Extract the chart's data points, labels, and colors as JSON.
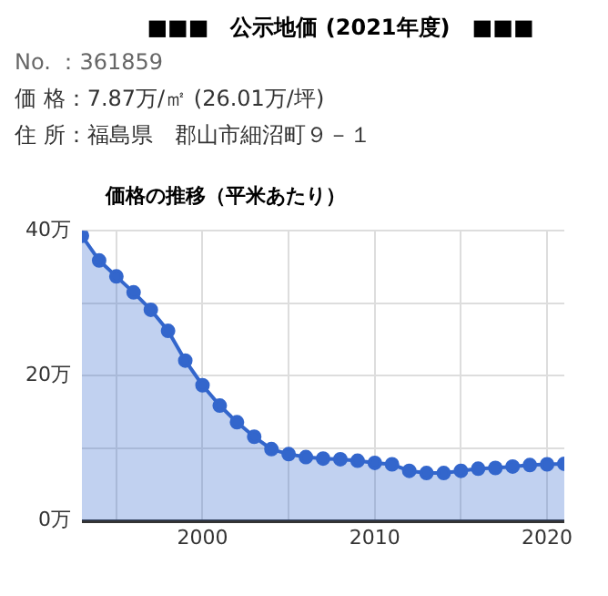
{
  "chart_data": {
    "type": "area",
    "title": "■■■　公示地価 (2021年度)　■■■",
    "subtitle": "価格の推移（平米あたり）",
    "annotations": [
      "No. ：361859",
      "価 格：7.87万/㎡ (26.01万/坪)",
      "住 所：福島県　郡山市細沼町９－１"
    ],
    "x": [
      1993,
      1994,
      1995,
      1996,
      1997,
      1998,
      1999,
      2000,
      2001,
      2002,
      2003,
      2004,
      2005,
      2006,
      2007,
      2008,
      2009,
      2010,
      2011,
      2012,
      2013,
      2014,
      2015,
      2016,
      2017,
      2018,
      2019,
      2020,
      2021
    ],
    "series": [
      {
        "color": "#3366cc",
        "values": [
          39.3,
          35.9,
          33.7,
          31.5,
          29.1,
          26.2,
          22.1,
          18.7,
          15.9,
          13.6,
          11.6,
          9.9,
          9.2,
          8.8,
          8.6,
          8.5,
          8.3,
          8.0,
          7.8,
          6.9,
          6.6,
          6.6,
          6.9,
          7.2,
          7.3,
          7.5,
          7.7,
          7.8,
          7.87
        ]
      }
    ],
    "xlim": [
      1993,
      2021
    ],
    "xticks": [
      {
        "value": 1995,
        "label": null
      },
      2000,
      {
        "value": 2005,
        "label": null
      },
      2010,
      {
        "value": 2015,
        "label": null
      },
      2020
    ],
    "ylim": [
      0,
      40
    ],
    "yticks": [
      {
        "value": 0,
        "label": "0万"
      },
      {
        "value": 10,
        "label": null
      },
      {
        "value": 20,
        "label": "20万"
      },
      {
        "value": 30,
        "label": null
      },
      {
        "value": 40,
        "label": "40万"
      }
    ],
    "grid": true,
    "legend": false,
    "marker": "circle",
    "line_style": "solid"
  }
}
